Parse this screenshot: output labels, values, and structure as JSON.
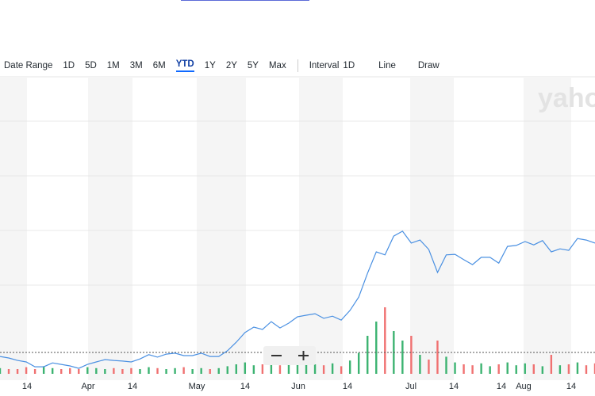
{
  "toolbar": {
    "date_range": "Date Range",
    "ranges": [
      "1D",
      "5D",
      "1M",
      "3M",
      "6M",
      "YTD",
      "1Y",
      "2Y",
      "5Y",
      "Max"
    ],
    "interval_label": "Interval",
    "interval": "1D",
    "chart_style": "Line",
    "draw": "Draw"
  },
  "watermark": "yaho",
  "chart_data": {
    "type": "line",
    "x_labels": [
      "14",
      "Apr",
      "14",
      "May",
      "14",
      "Jun",
      "14",
      "Jul",
      "14",
      "14",
      "Aug",
      "14"
    ],
    "ylim": [
      0,
      100
    ],
    "color": "#4a90e2",
    "values": [
      7.8,
      7.3,
      6.5,
      6.0,
      4.4,
      4.4,
      5.7,
      5.2,
      4.7,
      3.9,
      5.2,
      6.0,
      6.8,
      6.5,
      6.3,
      6.0,
      7.0,
      8.4,
      7.6,
      8.6,
      8.9,
      8.1,
      8.1,
      8.9,
      7.8,
      7.8,
      9.7,
      12.5,
      15.7,
      17.5,
      16.7,
      19.3,
      17.2,
      18.8,
      20.9,
      21.4,
      21.9,
      20.4,
      21.1,
      19.8,
      23.0,
      27.4,
      35.2,
      42.3,
      41.3,
      47.5,
      49.1,
      45.2,
      46.2,
      43.1,
      35.5,
      41.3,
      41.5,
      39.7,
      38.1,
      40.5,
      40.5,
      38.6,
      44.1,
      44.4,
      45.7,
      44.6,
      46.0,
      42.3,
      43.3,
      42.8,
      46.7,
      46.2,
      45.2
    ],
    "volume": [
      6,
      5,
      5,
      7,
      5,
      8,
      6,
      5,
      6,
      5,
      7,
      6,
      5,
      6,
      5,
      6,
      5,
      7,
      6,
      5,
      6,
      7,
      5,
      6,
      5,
      6,
      8,
      10,
      12,
      9,
      10,
      14,
      9,
      11,
      13,
      12,
      10,
      9,
      11,
      8,
      14,
      22,
      40,
      55,
      70,
      45,
      35,
      40,
      20,
      15,
      35,
      18,
      12,
      10,
      9,
      11,
      8,
      10,
      12,
      9,
      11,
      10,
      8,
      20,
      9,
      10,
      12,
      9,
      11
    ],
    "volume_lim": [
      0,
      100
    ],
    "up_color": "#3cb371",
    "down_color": "#f07171"
  }
}
